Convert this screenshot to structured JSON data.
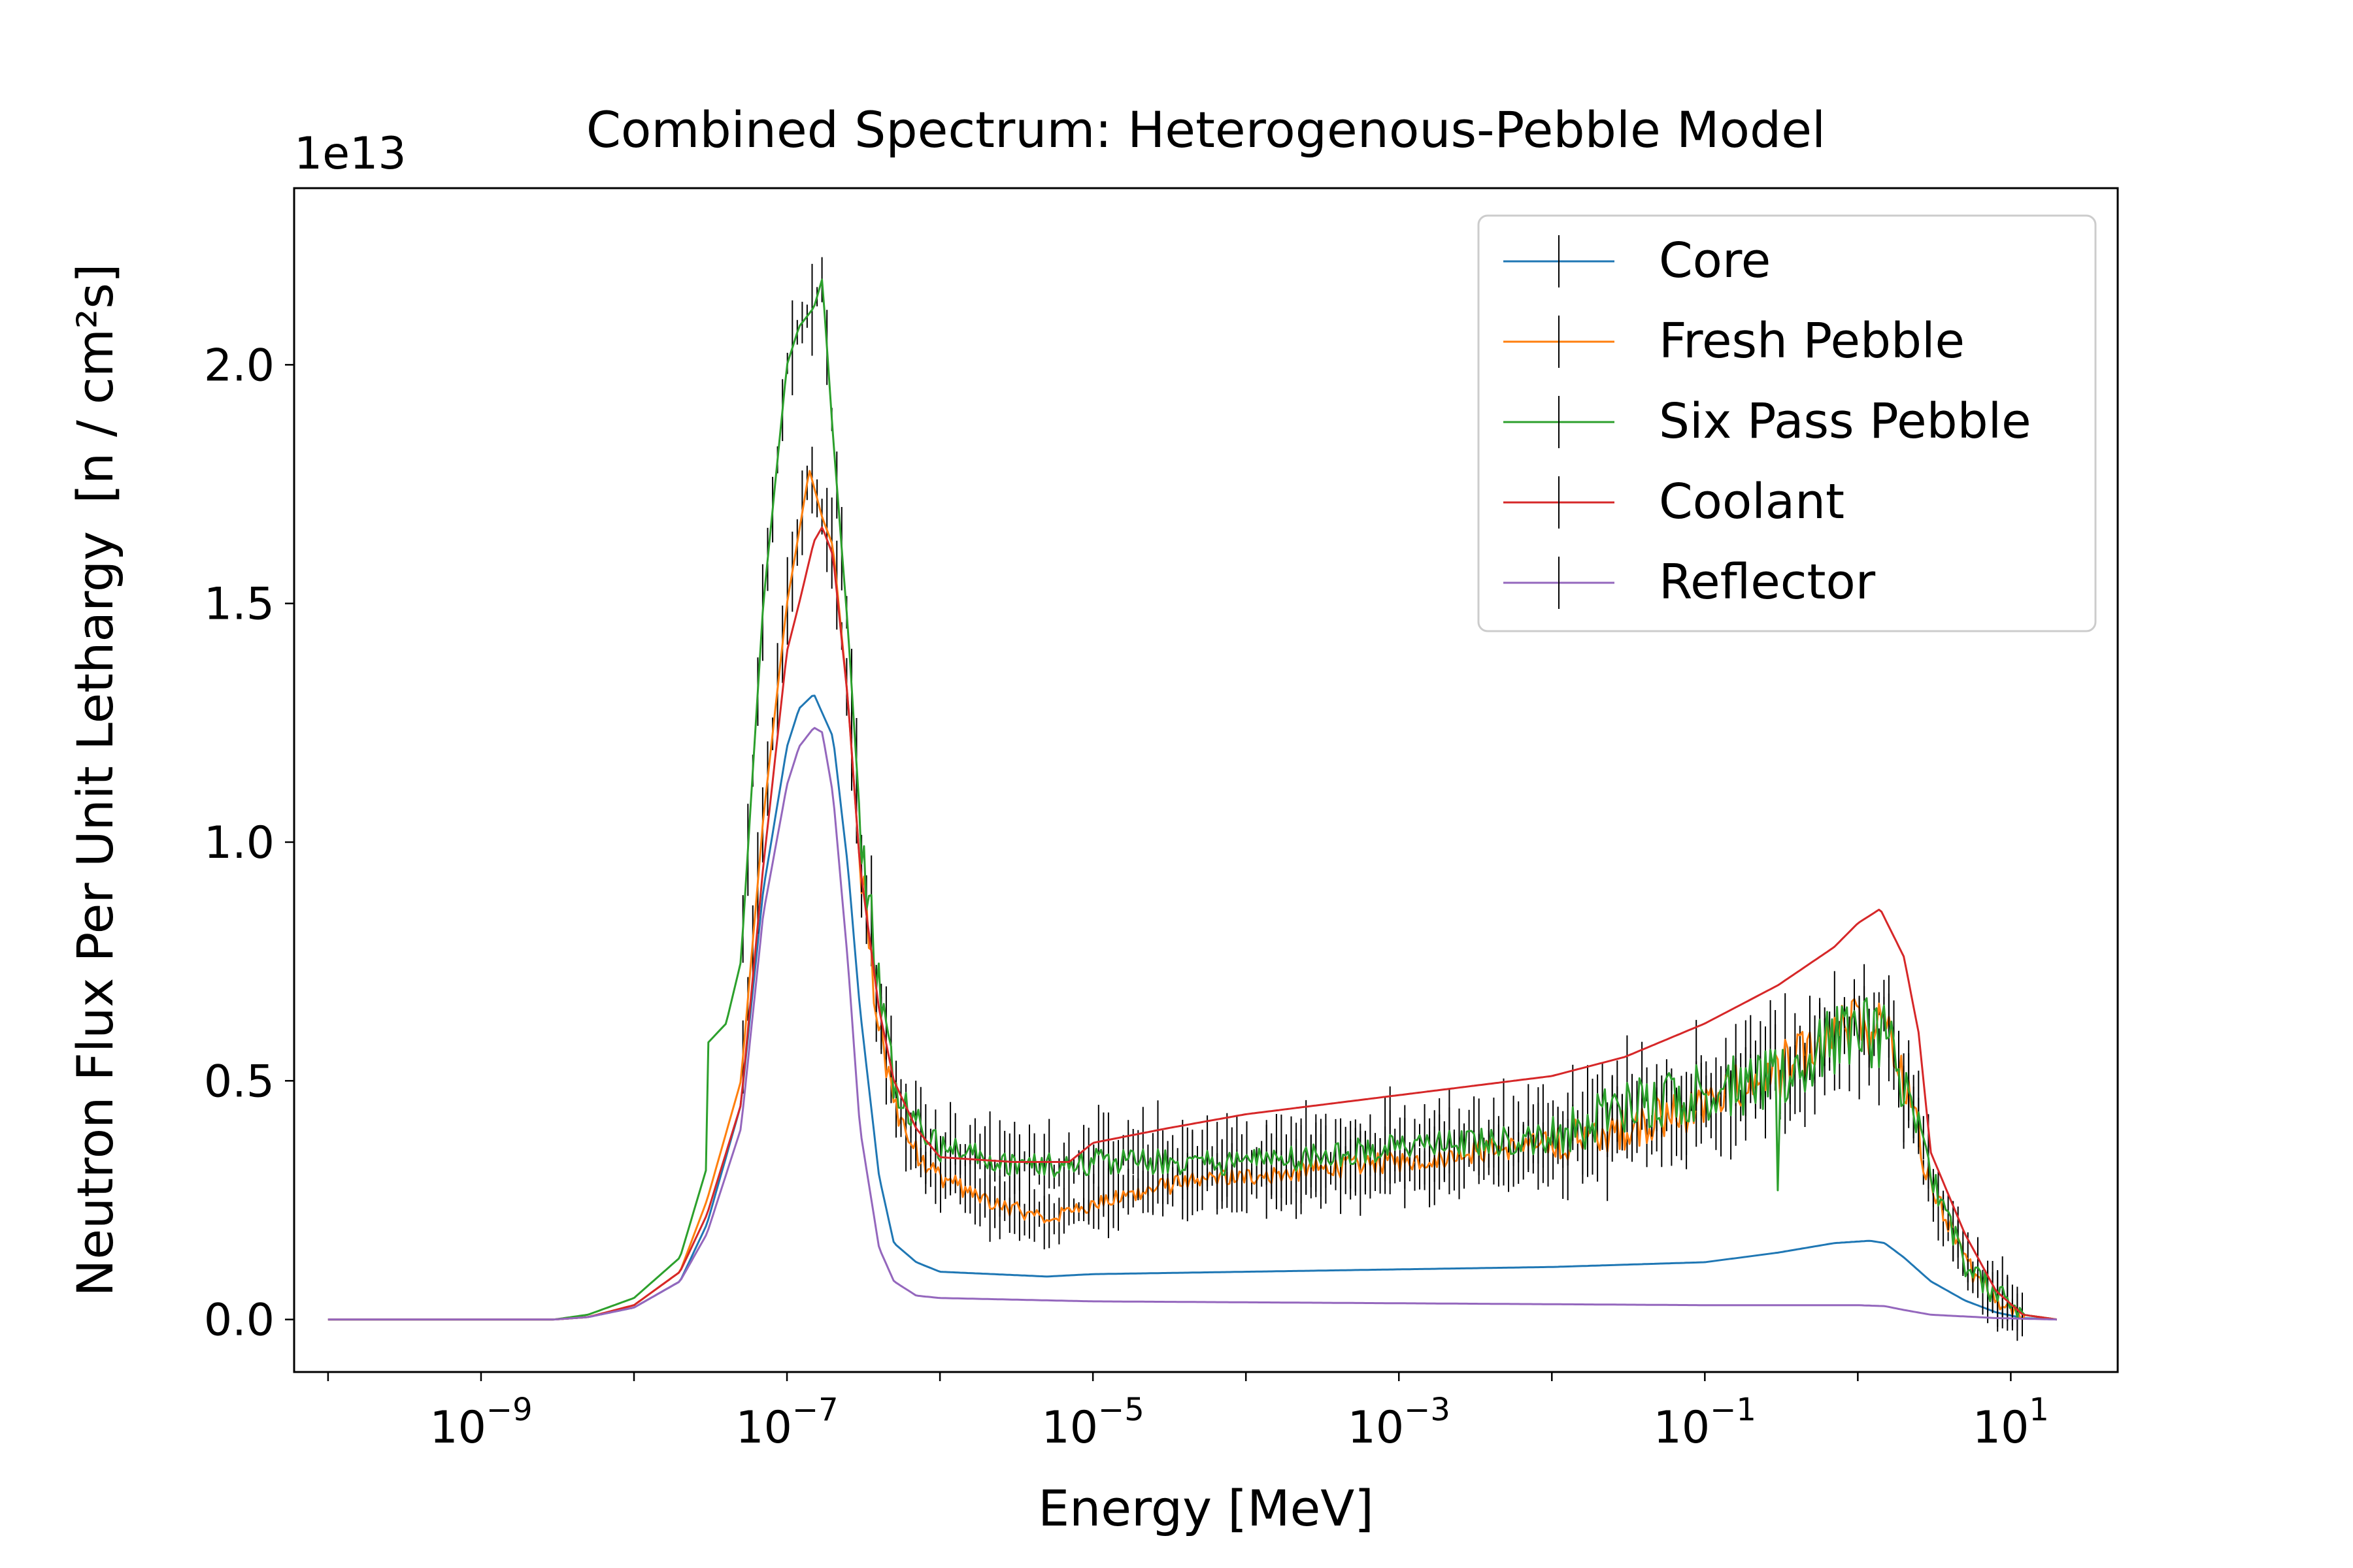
{
  "chart_data": {
    "type": "line",
    "title": "Combined Spectrum: Heterogenous-Pebble Model",
    "xlabel": "Energy [MeV]",
    "ylabel": "Neutron Flux Per Unit Lethargy",
    "ylabel_unit": "[n / cm²s]",
    "y_offset_label": "1e13",
    "x_scale": "log",
    "xlim": [
      6e-11,
      50
    ],
    "ylim": [
      -0.11,
      2.37
    ],
    "x_ticks": [
      {
        "value": 1e-09,
        "base": "10",
        "exp": "−9"
      },
      {
        "value": 1e-07,
        "base": "10",
        "exp": "−7"
      },
      {
        "value": 1e-05,
        "base": "10",
        "exp": "−5"
      },
      {
        "value": 0.001,
        "base": "10",
        "exp": "−3"
      },
      {
        "value": 0.1,
        "base": "10",
        "exp": "−1"
      },
      {
        "value": 10,
        "base": "10",
        "exp": "1"
      }
    ],
    "y_ticks": [
      {
        "value": 0.0,
        "label": "0.0"
      },
      {
        "value": 0.5,
        "label": "0.5"
      },
      {
        "value": 1.0,
        "label": "1.0"
      },
      {
        "value": 1.5,
        "label": "1.5"
      },
      {
        "value": 2.0,
        "label": "2.0"
      }
    ],
    "grid": false,
    "legend_position": "top-right",
    "series": [
      {
        "name": "Core",
        "color": "#1f77b4",
        "noise": 0.0,
        "points": [
          [
            1e-10,
            0
          ],
          [
            3e-09,
            0
          ],
          [
            5e-09,
            0.005
          ],
          [
            1e-08,
            0.025
          ],
          [
            2e-08,
            0.08
          ],
          [
            3e-08,
            0.2
          ],
          [
            5e-08,
            0.45
          ],
          [
            7e-08,
            0.9
          ],
          [
            1e-07,
            1.2
          ],
          [
            1.2e-07,
            1.28
          ],
          [
            1.5e-07,
            1.31
          ],
          [
            2e-07,
            1.22
          ],
          [
            2.5e-07,
            0.95
          ],
          [
            3e-07,
            0.65
          ],
          [
            4e-07,
            0.3
          ],
          [
            5e-07,
            0.16
          ],
          [
            7e-07,
            0.12
          ],
          [
            1e-06,
            0.1
          ],
          [
            5e-06,
            0.09
          ],
          [
            1e-05,
            0.095
          ],
          [
            0.0001,
            0.1
          ],
          [
            0.001,
            0.105
          ],
          [
            0.01,
            0.11
          ],
          [
            0.1,
            0.12
          ],
          [
            0.3,
            0.14
          ],
          [
            0.7,
            0.16
          ],
          [
            1.2,
            0.165
          ],
          [
            1.5,
            0.16
          ],
          [
            2,
            0.13
          ],
          [
            3,
            0.08
          ],
          [
            5,
            0.04
          ],
          [
            8,
            0.015
          ],
          [
            12,
            0.003
          ],
          [
            20,
            0
          ]
        ]
      },
      {
        "name": "Fresh Pebble",
        "color": "#ff7f0e",
        "noise": 0.05,
        "points": [
          [
            1e-10,
            0
          ],
          [
            3e-09,
            0
          ],
          [
            5e-09,
            0.005
          ],
          [
            1e-08,
            0.03
          ],
          [
            2e-08,
            0.1
          ],
          [
            3e-08,
            0.25
          ],
          [
            5e-08,
            0.5
          ],
          [
            7e-08,
            1.05
          ],
          [
            1e-07,
            1.5
          ],
          [
            1.2e-07,
            1.65
          ],
          [
            1.4e-07,
            1.78
          ],
          [
            1.7e-07,
            1.68
          ],
          [
            2e-07,
            1.62
          ],
          [
            2.5e-07,
            1.3
          ],
          [
            3e-07,
            0.95
          ],
          [
            4e-07,
            0.6
          ],
          [
            5e-07,
            0.45
          ],
          [
            7e-07,
            0.35
          ],
          [
            1e-06,
            0.3
          ],
          [
            2e-06,
            0.25
          ],
          [
            5e-06,
            0.21
          ],
          [
            1e-05,
            0.24
          ],
          [
            3e-05,
            0.28
          ],
          [
            0.0001,
            0.3
          ],
          [
            0.001,
            0.33
          ],
          [
            0.003,
            0.35
          ],
          [
            0.01,
            0.37
          ],
          [
            0.03,
            0.4
          ],
          [
            0.1,
            0.45
          ],
          [
            0.3,
            0.52
          ],
          [
            0.7,
            0.58
          ],
          [
            1,
            0.62
          ],
          [
            1.5,
            0.6
          ],
          [
            2,
            0.5
          ],
          [
            3,
            0.28
          ],
          [
            5,
            0.12
          ],
          [
            8,
            0.05
          ],
          [
            12,
            0.01
          ],
          [
            20,
            0
          ]
        ]
      },
      {
        "name": "Six Pass Pebble",
        "color": "#2ca02c",
        "noise": 0.06,
        "points": [
          [
            1e-10,
            0
          ],
          [
            3e-09,
            0
          ],
          [
            5e-09,
            0.01
          ],
          [
            1e-08,
            0.045
          ],
          [
            2e-08,
            0.13
          ],
          [
            3e-08,
            0.32
          ],
          [
            3.05e-08,
            0.58
          ],
          [
            4e-08,
            0.62
          ],
          [
            5e-08,
            0.75
          ],
          [
            7e-08,
            1.5
          ],
          [
            1e-07,
            2.0
          ],
          [
            1.2e-07,
            2.08
          ],
          [
            1.5e-07,
            2.12
          ],
          [
            1.7e-07,
            2.18
          ],
          [
            2e-07,
            1.85
          ],
          [
            2.5e-07,
            1.45
          ],
          [
            3e-07,
            1.05
          ],
          [
            4e-07,
            0.7
          ],
          [
            5e-07,
            0.5
          ],
          [
            7e-07,
            0.42
          ],
          [
            1e-06,
            0.36
          ],
          [
            3e-06,
            0.32
          ],
          [
            1e-05,
            0.33
          ],
          [
            0.0001,
            0.33
          ],
          [
            0.001,
            0.36
          ],
          [
            0.01,
            0.38
          ],
          [
            0.03,
            0.45
          ],
          [
            0.1,
            0.48
          ],
          [
            0.29,
            0.5
          ],
          [
            0.3,
            0.25
          ],
          [
            0.31,
            0.5
          ],
          [
            0.7,
            0.58
          ],
          [
            1,
            0.62
          ],
          [
            1.5,
            0.6
          ],
          [
            2,
            0.5
          ],
          [
            3,
            0.3
          ],
          [
            5,
            0.12
          ],
          [
            8,
            0.05
          ],
          [
            12,
            0.01
          ],
          [
            20,
            0
          ]
        ]
      },
      {
        "name": "Coolant",
        "color": "#d62728",
        "noise": 0.0,
        "points": [
          [
            1e-10,
            0
          ],
          [
            3e-09,
            0
          ],
          [
            5e-09,
            0.005
          ],
          [
            1e-08,
            0.03
          ],
          [
            2e-08,
            0.1
          ],
          [
            3e-08,
            0.22
          ],
          [
            5e-08,
            0.45
          ],
          [
            7e-08,
            0.95
          ],
          [
            1e-07,
            1.4
          ],
          [
            1.2e-07,
            1.5
          ],
          [
            1.5e-07,
            1.63
          ],
          [
            1.7e-07,
            1.66
          ],
          [
            2e-07,
            1.6
          ],
          [
            2.5e-07,
            1.3
          ],
          [
            3e-07,
            0.95
          ],
          [
            4e-07,
            0.65
          ],
          [
            5e-07,
            0.5
          ],
          [
            7e-07,
            0.4
          ],
          [
            1e-06,
            0.34
          ],
          [
            3e-06,
            0.33
          ],
          [
            7e-06,
            0.33
          ],
          [
            1e-05,
            0.37
          ],
          [
            3e-05,
            0.4
          ],
          [
            0.0001,
            0.43
          ],
          [
            0.001,
            0.47
          ],
          [
            0.01,
            0.51
          ],
          [
            0.03,
            0.55
          ],
          [
            0.1,
            0.62
          ],
          [
            0.3,
            0.7
          ],
          [
            0.7,
            0.78
          ],
          [
            1,
            0.83
          ],
          [
            1.4,
            0.86
          ],
          [
            2,
            0.76
          ],
          [
            2.5,
            0.6
          ],
          [
            3,
            0.35
          ],
          [
            5,
            0.18
          ],
          [
            8,
            0.06
          ],
          [
            12,
            0.01
          ],
          [
            20,
            0
          ]
        ]
      },
      {
        "name": "Reflector",
        "color": "#9467bd",
        "noise": 0.0,
        "points": [
          [
            1e-10,
            0
          ],
          [
            3e-09,
            0
          ],
          [
            5e-09,
            0.005
          ],
          [
            1e-08,
            0.025
          ],
          [
            2e-08,
            0.08
          ],
          [
            3e-08,
            0.18
          ],
          [
            5e-08,
            0.4
          ],
          [
            7e-08,
            0.85
          ],
          [
            1e-07,
            1.12
          ],
          [
            1.2e-07,
            1.2
          ],
          [
            1.5e-07,
            1.24
          ],
          [
            1.7e-07,
            1.23
          ],
          [
            2e-07,
            1.1
          ],
          [
            2.5e-07,
            0.75
          ],
          [
            3e-07,
            0.4
          ],
          [
            4e-07,
            0.15
          ],
          [
            5e-07,
            0.08
          ],
          [
            7e-07,
            0.05
          ],
          [
            1e-06,
            0.045
          ],
          [
            1e-05,
            0.038
          ],
          [
            0.0001,
            0.036
          ],
          [
            0.001,
            0.034
          ],
          [
            0.01,
            0.032
          ],
          [
            0.1,
            0.03
          ],
          [
            1,
            0.03
          ],
          [
            1.5,
            0.028
          ],
          [
            2,
            0.02
          ],
          [
            3,
            0.01
          ],
          [
            8,
            0.003
          ],
          [
            20,
            0
          ]
        ]
      }
    ]
  }
}
